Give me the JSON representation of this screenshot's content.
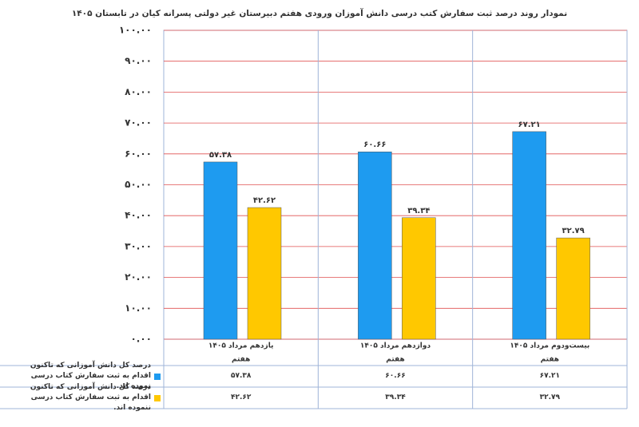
{
  "chart_data": {
    "type": "bar",
    "title": "نمودار روند درصد ثبت سفارش کتب درسی دانش آموزان ورودی هفتم دبیرستان غیر دولتی پسرانه کیان در تابستان ۱۴۰۵",
    "categories": [
      "یازدهم مرداد ۱۴۰۵",
      "دوازدهم مرداد ۱۴۰۵",
      "بیست‌ودوم مرداد ۱۴۰۵"
    ],
    "category_group": [
      "هفتم",
      "هفتم",
      "هفتم"
    ],
    "series": [
      {
        "name": "درصد کل دانش آموزانی که تاکنون اقدام به ثبت سفارش کتاب درسی نموده اند.",
        "color": "#1e9bf0",
        "values": [
          57.38,
          60.66,
          67.21
        ],
        "value_labels": [
          "۵۷.۳۸",
          "۶۰.۶۶",
          "۶۷.۲۱"
        ]
      },
      {
        "name": "درصد کل دانش آموزانی که تاکنون اقدام به ثبت سفارش کتاب درسی ننموده اند.",
        "color": "#ffc800",
        "values": [
          42.62,
          39.34,
          32.79
        ],
        "value_labels": [
          "۴۲.۶۲",
          "۳۹.۳۴",
          "۳۲.۷۹"
        ]
      }
    ],
    "ylim": [
      0,
      100
    ],
    "yticks": [
      {
        "value": 0,
        "label": "۰.۰۰"
      },
      {
        "value": 10,
        "label": "۱۰.۰۰"
      },
      {
        "value": 20,
        "label": "۲۰.۰۰"
      },
      {
        "value": 30,
        "label": "۳۰.۰۰"
      },
      {
        "value": 40,
        "label": "۴۰.۰۰"
      },
      {
        "value": 50,
        "label": "۵۰.۰۰"
      },
      {
        "value": 60,
        "label": "۶۰.۰۰"
      },
      {
        "value": 70,
        "label": "۷۰.۰۰"
      },
      {
        "value": 80,
        "label": "۸۰.۰۰"
      },
      {
        "value": 90,
        "label": "۹۰.۰۰"
      },
      {
        "value": 100,
        "label": "۱۰۰.۰۰"
      }
    ],
    "grid": true
  }
}
